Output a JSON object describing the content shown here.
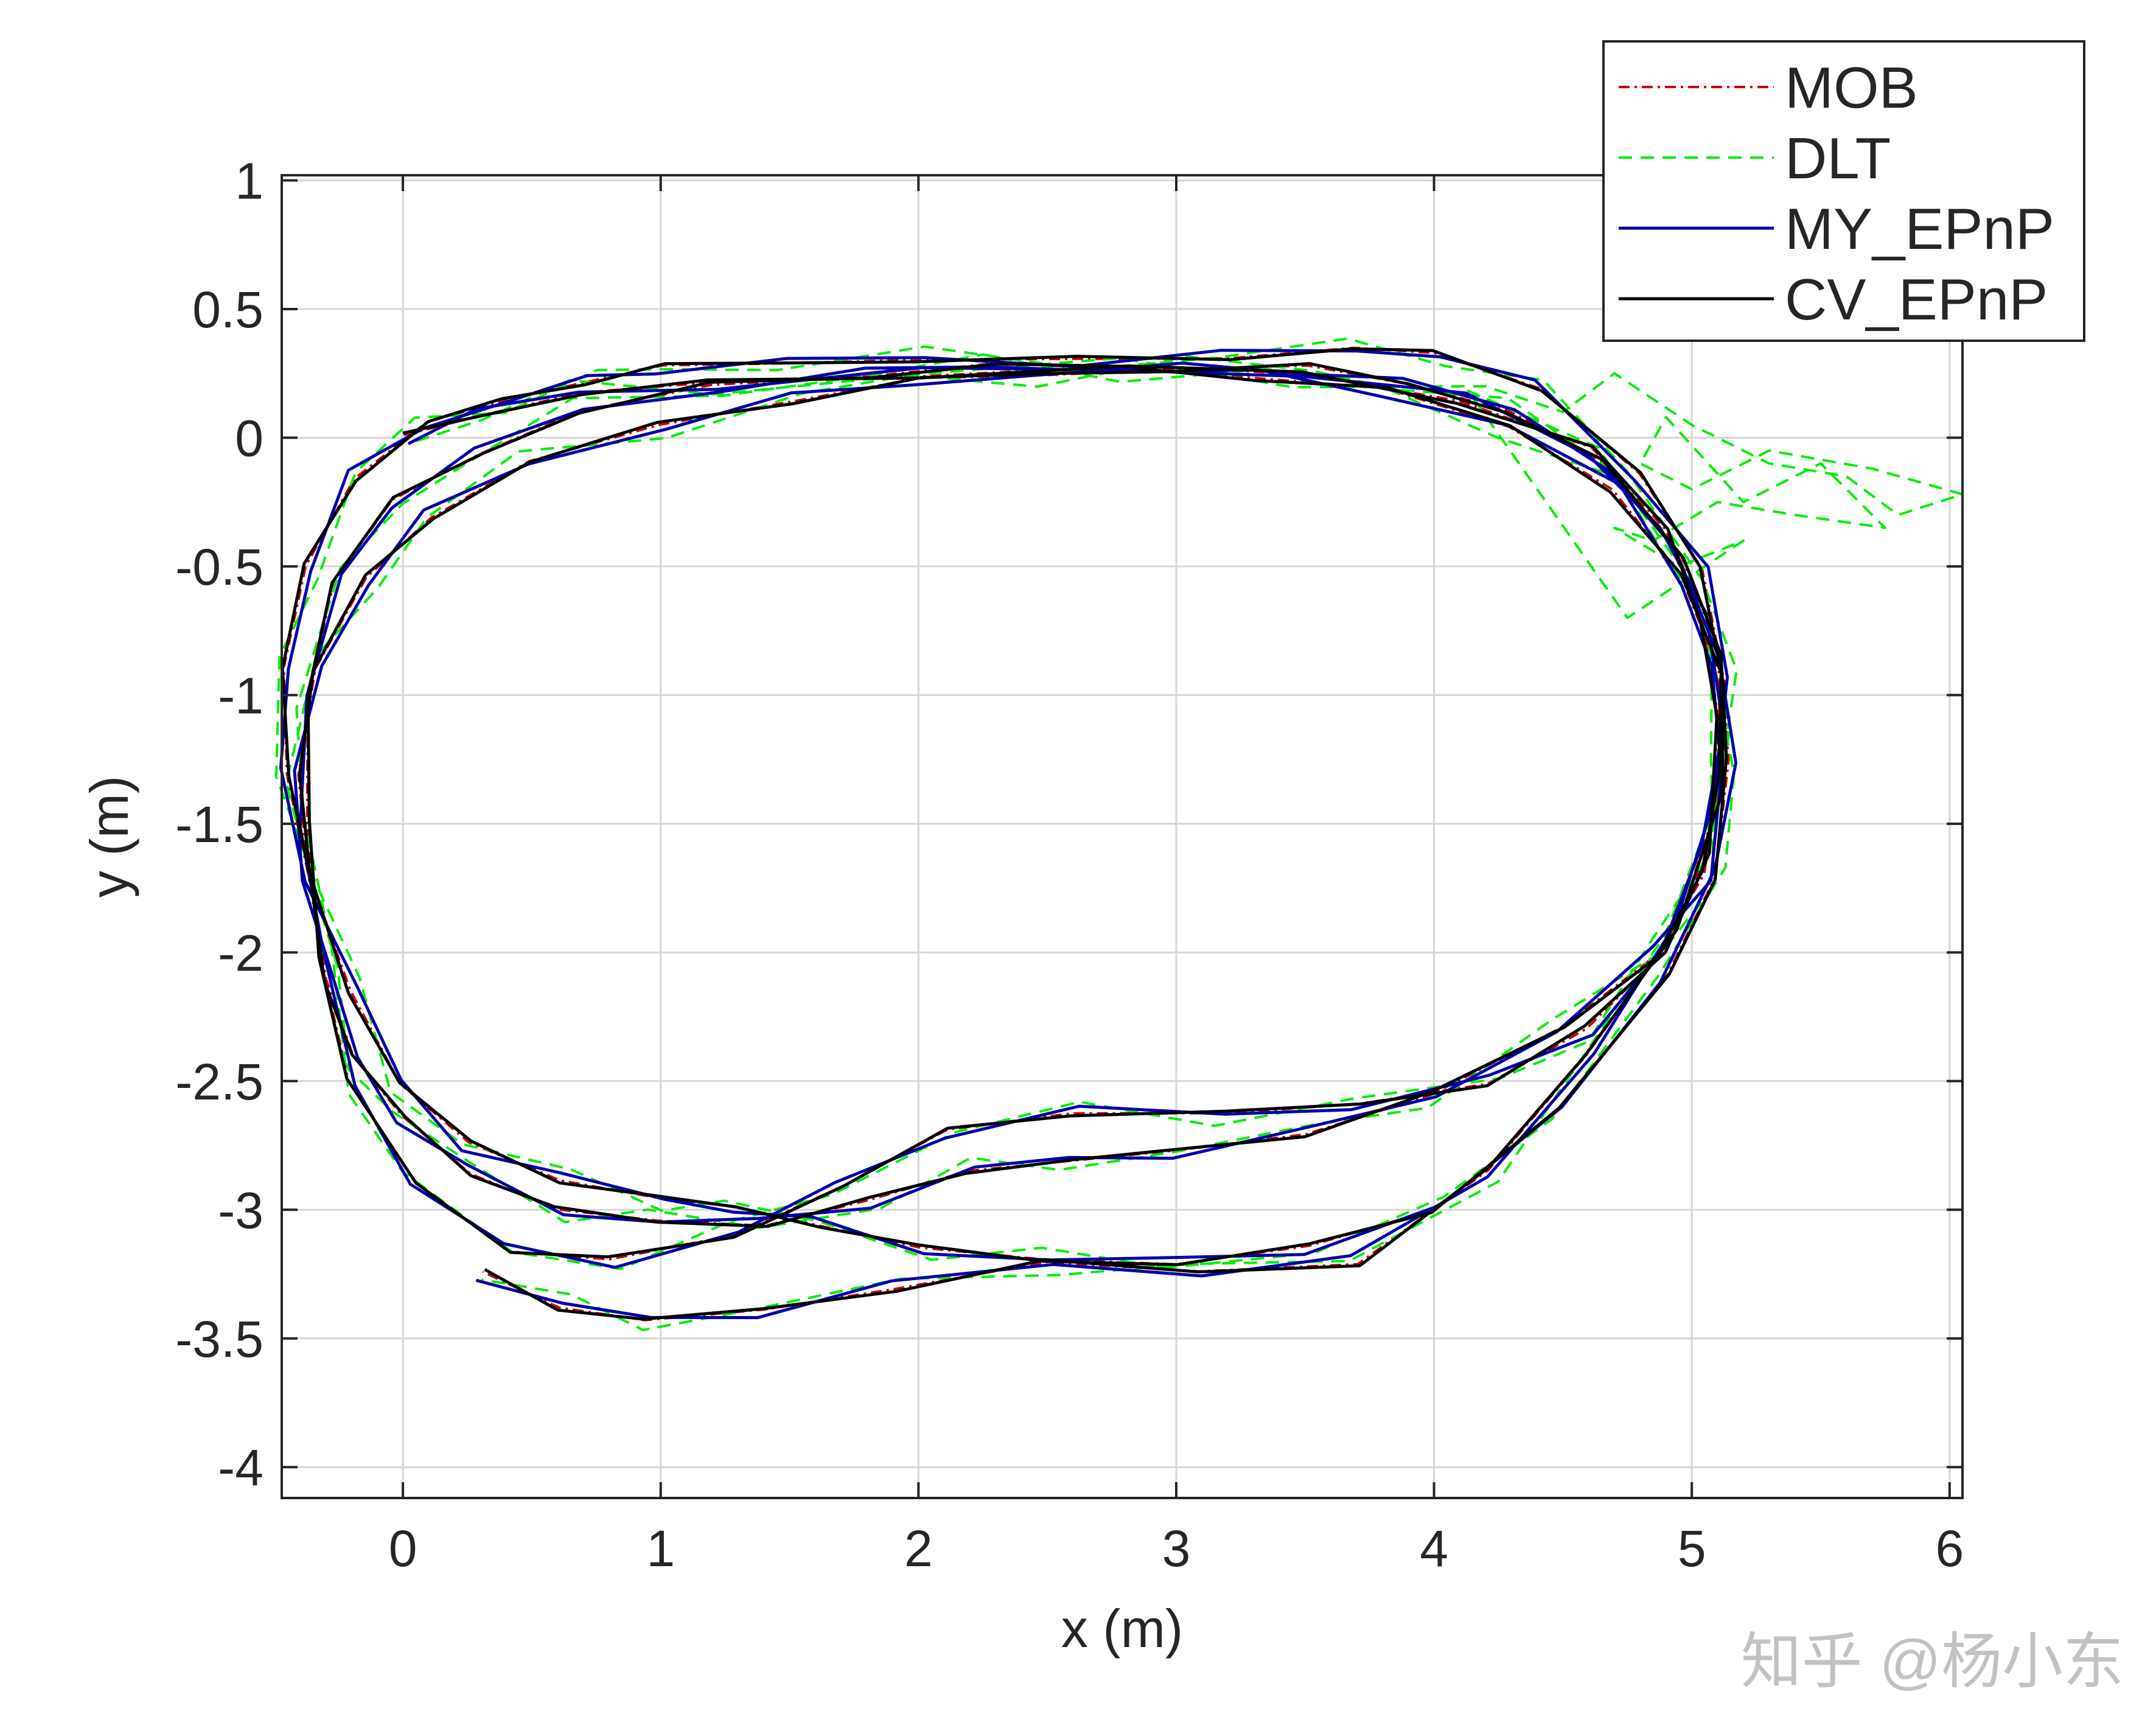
{
  "watermark": "知乎 @杨小东",
  "chart_data": {
    "type": "line",
    "title": "",
    "xlabel": "x (m)",
    "ylabel": "y (m)",
    "xlim": [
      -0.47,
      6.05
    ],
    "ylim": [
      -4.12,
      1.02
    ],
    "xticks": [
      0,
      1,
      2,
      3,
      4,
      5,
      6
    ],
    "yticks": [
      1,
      0.5,
      0,
      -0.5,
      -1,
      -1.5,
      -2,
      -2.5,
      -3,
      -3.5,
      -4
    ],
    "xtick_labels": [
      "0",
      "1",
      "2",
      "3",
      "4",
      "5",
      "6"
    ],
    "ytick_labels": [
      "1",
      "0.5",
      "0",
      "-0.5",
      "-1",
      "-1.5",
      "-2",
      "-2.5",
      "-3",
      "-3.5",
      "-4"
    ],
    "grid": true,
    "legend_position": "top-right",
    "series": [
      {
        "name": "MOB",
        "color": "#cc0000",
        "style": "dashdot",
        "jitter": 0.004,
        "phase": 0.4
      },
      {
        "name": "DLT",
        "color": "#00ee00",
        "style": "dashed",
        "jitter": 0.018,
        "phase": 1.3
      },
      {
        "name": "MY_EPnP",
        "color": "#0000aa",
        "style": "solid",
        "jitter": 0.008,
        "phase": 2.1
      },
      {
        "name": "CV_EPnP",
        "color": "#000000",
        "style": "solid",
        "jitter": 0.006,
        "phase": 0.0
      }
    ],
    "path": {
      "x": [
        0.0,
        0.3,
        0.7,
        1.2,
        2.0,
        2.8,
        3.5,
        4.1,
        4.6,
        4.9,
        5.05,
        5.1,
        5.05,
        4.9,
        4.6,
        4.2,
        3.7,
        3.2,
        2.6,
        2.1,
        1.7,
        1.3,
        0.8,
        0.4,
        0.05,
        -0.2,
        -0.33,
        -0.38,
        -0.36,
        -0.26,
        -0.05,
        0.3,
        0.7,
        1.2,
        1.8,
        2.3,
        2.8,
        3.3,
        3.8,
        4.3,
        4.7,
        4.95,
        5.1,
        5.12,
        5.05,
        4.85,
        4.5,
        4.0,
        3.5,
        3.0,
        2.6,
        2.2,
        1.8,
        1.4,
        1.0,
        0.6,
        0.25,
        0.0,
        -0.18,
        -0.3,
        -0.38,
        -0.4,
        -0.33,
        -0.15,
        0.1,
        0.5,
        1.0,
        1.5,
        2.0,
        2.5,
        3.0,
        3.5,
        3.9,
        4.3,
        4.65,
        4.95,
        5.12,
        5.15,
        5.08,
        4.9,
        4.5,
        4.0,
        3.5,
        3.0,
        2.5,
        2.0,
        1.6,
        1.3,
        1.0,
        0.6,
        0.25,
        0.0,
        -0.2,
        -0.38,
        -0.45,
        -0.45,
        -0.38,
        -0.2,
        0.1,
        0.4,
        0.7,
        1.0,
        1.5,
        2.0,
        2.6,
        3.2,
        3.7,
        4.0,
        4.4,
        4.8,
        5.05,
        5.12,
        5.1,
        4.95,
        4.6,
        4.2,
        3.7,
        3.1,
        2.5,
        1.9,
        1.4,
        0.95,
        0.6,
        0.3
      ],
      "y": [
        0.0,
        0.1,
        0.17,
        0.21,
        0.25,
        0.27,
        0.25,
        0.15,
        -0.05,
        -0.35,
        -0.7,
        -1.1,
        -1.6,
        -2.0,
        -2.3,
        -2.5,
        -2.6,
        -2.62,
        -2.62,
        -2.7,
        -2.9,
        -3.1,
        -3.2,
        -3.15,
        -2.9,
        -2.5,
        -2.0,
        -1.5,
        -1.0,
        -0.55,
        -0.25,
        -0.05,
        0.1,
        0.2,
        0.25,
        0.28,
        0.27,
        0.24,
        0.18,
        0.05,
        -0.2,
        -0.55,
        -0.9,
        -1.3,
        -1.7,
        -2.0,
        -2.3,
        -2.55,
        -2.7,
        -2.78,
        -2.8,
        -2.85,
        -2.97,
        -3.05,
        -3.05,
        -3.0,
        -2.85,
        -2.65,
        -2.4,
        -2.1,
        -1.7,
        -1.3,
        -0.9,
        -0.55,
        -0.3,
        -0.1,
        0.05,
        0.15,
        0.22,
        0.25,
        0.27,
        0.27,
        0.22,
        0.1,
        -0.1,
        -0.45,
        -0.85,
        -1.25,
        -1.7,
        -2.1,
        -2.6,
        -3.0,
        -3.15,
        -3.2,
        -3.2,
        -3.15,
        -3.05,
        -3.0,
        -2.95,
        -2.88,
        -2.75,
        -2.5,
        -2.15,
        -1.7,
        -1.3,
        -0.9,
        -0.5,
        -0.15,
        0.05,
        0.15,
        0.22,
        0.27,
        0.3,
        0.3,
        0.3,
        0.32,
        0.34,
        0.33,
        0.2,
        -0.15,
        -0.5,
        -0.95,
        -1.4,
        -1.9,
        -2.4,
        -2.85,
        -3.2,
        -3.25,
        -3.2,
        -3.3,
        -3.4,
        -3.42,
        -3.38,
        -3.25
      ]
    },
    "dlt_outliers": {
      "x": [
        4.2,
        4.5,
        4.7,
        5.0,
        5.3,
        5.6,
        5.8,
        6.05,
        5.7,
        5.3,
        5.0,
        4.8,
        4.9,
        5.2,
        5.5,
        5.75,
        5.4,
        5.1,
        4.85,
        4.7,
        4.95,
        5.2,
        4.9,
        4.75
      ],
      "y": [
        0.2,
        0.1,
        0.25,
        0.05,
        -0.1,
        -0.15,
        -0.3,
        -0.22,
        -0.12,
        -0.05,
        -0.2,
        -0.1,
        0.08,
        -0.25,
        -0.1,
        -0.35,
        -0.3,
        -0.25,
        -0.4,
        -0.35,
        -0.5,
        -0.4,
        -0.6,
        -0.7
      ]
    }
  }
}
